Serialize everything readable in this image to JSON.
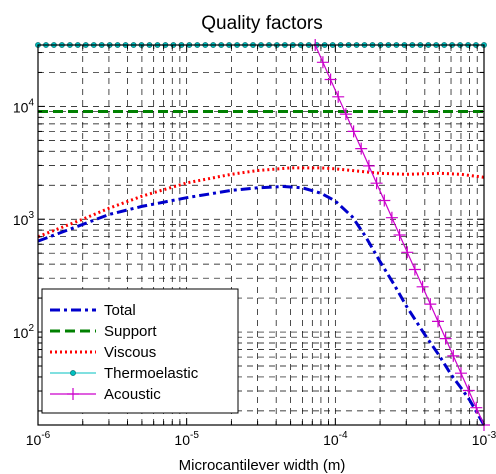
{
  "chart_data": {
    "type": "line",
    "title": "Quality factors",
    "xlabel": "Microcantilever width (m)",
    "ylabel": "",
    "xscale": "log",
    "yscale": "log",
    "xlim": [
      1e-06,
      0.001
    ],
    "ylim": [
      15,
      35000
    ],
    "grid": "major and minor, dashed",
    "x_tick_labels": [
      {
        "base": "10",
        "exp": "-6"
      },
      {
        "base": "10",
        "exp": "-5"
      },
      {
        "base": "10",
        "exp": "-4"
      },
      {
        "base": "10",
        "exp": "-3"
      }
    ],
    "y_tick_labels": [
      {
        "base": "10",
        "exp": "2"
      },
      {
        "base": "10",
        "exp": "3"
      },
      {
        "base": "10",
        "exp": "4"
      }
    ],
    "legend": {
      "position": "bottom-left"
    },
    "series": [
      {
        "name": "Total",
        "color": "#0000cc",
        "style": "dash-dot",
        "x": [
          1e-06,
          2e-06,
          3e-06,
          5e-06,
          1e-05,
          2e-05,
          3e-05,
          4.5e-05,
          6e-05,
          8e-05,
          0.0001,
          0.00013,
          0.00016,
          0.0002,
          0.00025,
          0.0003,
          0.0004,
          0.0005,
          0.0006,
          0.0007,
          0.0008,
          0.001
        ],
        "y": [
          640,
          900,
          1100,
          1300,
          1550,
          1800,
          1900,
          1950,
          1900,
          1700,
          1450,
          1050,
          700,
          420,
          260,
          170,
          95,
          62,
          42,
          32,
          25,
          15
        ]
      },
      {
        "name": "Support",
        "color": "#008000",
        "style": "dashed",
        "x": [
          1e-06,
          0.001
        ],
        "y": [
          9000,
          9000
        ]
      },
      {
        "name": "Viscous",
        "color": "#ff0000",
        "style": "dotted",
        "x": [
          1e-06,
          2e-06,
          3e-06,
          5e-06,
          1e-05,
          2e-05,
          3e-05,
          5e-05,
          8e-05,
          0.0001,
          0.00015,
          0.0002,
          0.0003,
          0.0005,
          0.0007,
          0.001
        ],
        "y": [
          700,
          1000,
          1250,
          1600,
          2100,
          2500,
          2700,
          2850,
          2850,
          2800,
          2650,
          2550,
          2500,
          2550,
          2500,
          2350
        ]
      },
      {
        "name": "Thermoelastic",
        "color": "#00c0c0",
        "style": "solid-circle-markers",
        "x": [
          1e-06,
          0.001
        ],
        "y": [
          35000,
          35000
        ]
      },
      {
        "name": "Acoustic",
        "color": "#cc00cc",
        "style": "solid-plus-markers",
        "x": [
          7e-05,
          0.001
        ],
        "y": [
          40000,
          15
        ]
      }
    ]
  }
}
